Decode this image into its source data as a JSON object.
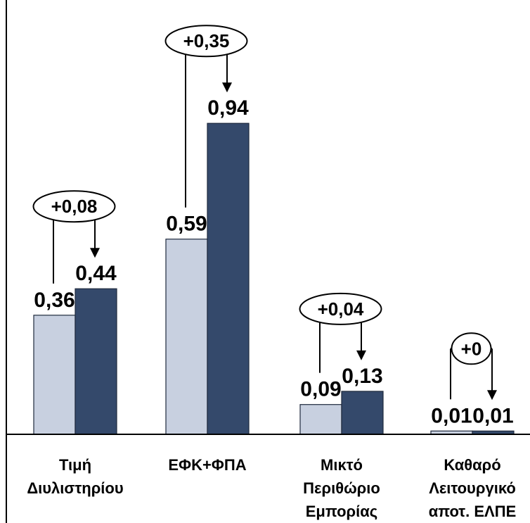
{
  "chart_data": {
    "type": "bar",
    "categories": [
      [
        "Τιμή",
        "Διυλιστηρίου"
      ],
      [
        "ΕΦΚ+ΦΠΑ"
      ],
      [
        "Μικτό",
        "Περιθώριο",
        "Εμπορίας"
      ],
      [
        "Καθαρό",
        "Λειτουργικό",
        "αποτ. ΕΛΠΕ"
      ]
    ],
    "series": [
      {
        "values": [
          0.36,
          0.59,
          0.09,
          0.01
        ],
        "labels": [
          "0,36",
          "0,59",
          "0,09",
          "0,01"
        ]
      },
      {
        "values": [
          0.44,
          0.94,
          0.13,
          0.01
        ],
        "labels": [
          "0,44",
          "0,94",
          "0,13",
          "0,01"
        ]
      }
    ],
    "changes": [
      "+0,08",
      "+0,35",
      "+0,04",
      "+0"
    ],
    "ylim": [
      0,
      1.1
    ],
    "grid": false,
    "legend": "none",
    "colors": {
      "series_1": "#c8d0e0",
      "series_2": "#34496b",
      "axis": "#000000"
    }
  }
}
